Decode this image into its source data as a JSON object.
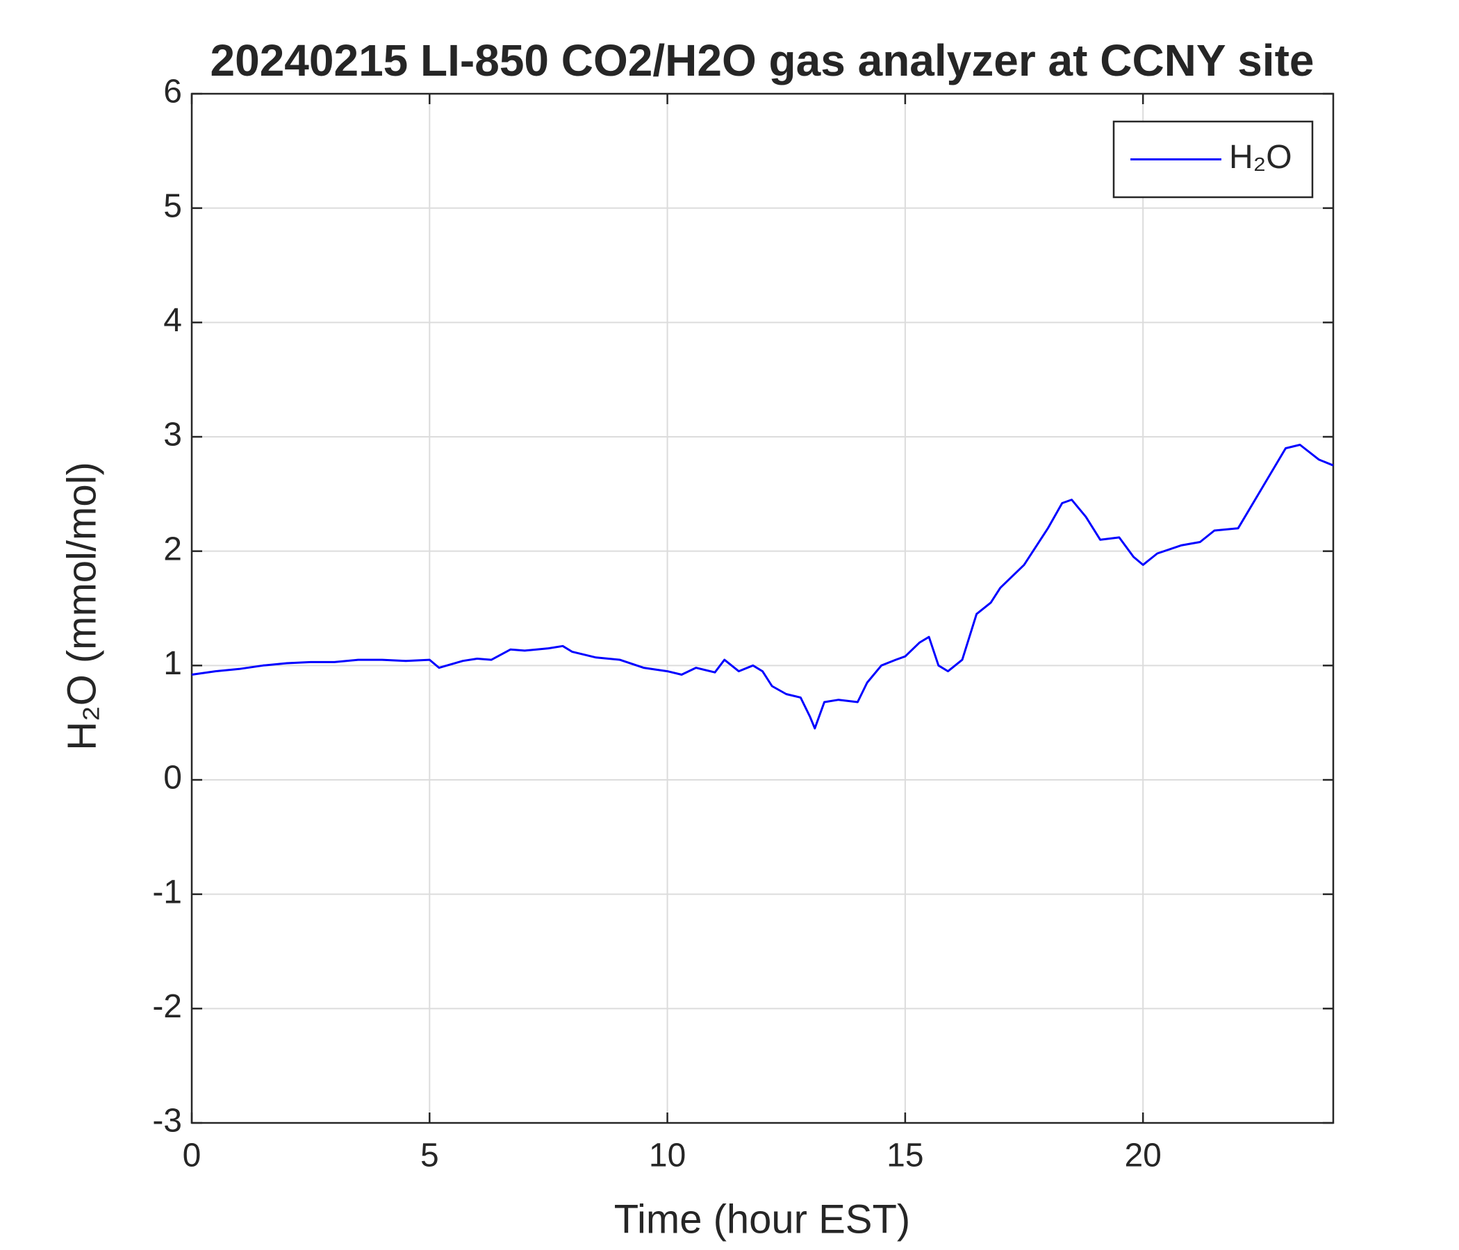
{
  "chart_data": {
    "type": "line",
    "title": "20240215 LI-850 CO2/H2O gas analyzer at CCNY site",
    "xlabel": "Time (hour EST)",
    "ylabel": "H₂O (mmol/mol)",
    "x": [
      0,
      0.5,
      1,
      1.5,
      2,
      2.5,
      3,
      3.5,
      4,
      4.5,
      5,
      5.2,
      5.7,
      6,
      6.3,
      6.7,
      7,
      7.5,
      7.8,
      8,
      8.5,
      9,
      9.5,
      10,
      10.3,
      10.6,
      11,
      11.2,
      11.5,
      11.8,
      12,
      12.2,
      12.5,
      12.8,
      13,
      13.1,
      13.3,
      13.6,
      14,
      14.2,
      14.5,
      14.8,
      15,
      15.3,
      15.5,
      15.7,
      15.9,
      16.2,
      16.5,
      16.8,
      17,
      17.5,
      18,
      18.3,
      18.5,
      18.8,
      19.1,
      19.5,
      19.8,
      20,
      20.3,
      20.8,
      21.2,
      21.5,
      22,
      22.5,
      23,
      23.3,
      23.7,
      24
    ],
    "series": [
      {
        "name": "H₂O",
        "color": "#0000ff",
        "values": [
          0.92,
          0.95,
          0.97,
          1.0,
          1.02,
          1.03,
          1.03,
          1.05,
          1.05,
          1.04,
          1.05,
          0.98,
          1.04,
          1.06,
          1.05,
          1.14,
          1.13,
          1.15,
          1.17,
          1.12,
          1.07,
          1.05,
          0.98,
          0.95,
          0.92,
          0.98,
          0.94,
          1.05,
          0.95,
          1.0,
          0.95,
          0.82,
          0.75,
          0.72,
          0.55,
          0.45,
          0.68,
          0.7,
          0.68,
          0.85,
          1.0,
          1.05,
          1.08,
          1.2,
          1.25,
          1.0,
          0.95,
          1.05,
          1.45,
          1.55,
          1.68,
          1.88,
          2.2,
          2.42,
          2.45,
          2.3,
          2.1,
          2.12,
          1.95,
          1.88,
          1.98,
          2.05,
          2.08,
          2.18,
          2.2,
          2.55,
          2.9,
          2.93,
          2.8,
          2.75
        ]
      }
    ],
    "xlim": [
      0,
      24
    ],
    "xticks": [
      0,
      5,
      10,
      15,
      20
    ],
    "ylim": [
      -3,
      6
    ],
    "yticks": [
      -3,
      -2,
      -1,
      0,
      1,
      2,
      3,
      4,
      5,
      6
    ],
    "grid": true,
    "legend": "upper right"
  }
}
